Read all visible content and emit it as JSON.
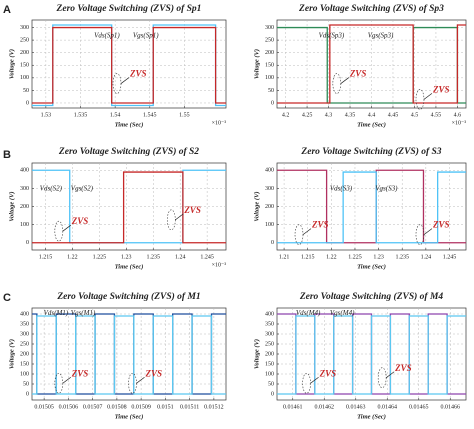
{
  "panels": [
    "A",
    "B",
    "C"
  ],
  "chart_data": [
    {
      "type": "line",
      "title": "Zero Voltage Switching (ZVS) of Sp1",
      "x_label": "Time (Sec)",
      "y_label": "Voltage (V)",
      "x_exponent": "×10⁻³",
      "xlim": [
        1.528,
        1.556
      ],
      "xticks": [
        1.53,
        1.535,
        1.54,
        1.545,
        1.55
      ],
      "ylim": [
        -20,
        330
      ],
      "yticks": [
        0,
        50,
        100,
        150,
        200,
        250,
        300
      ],
      "grid": true,
      "x": [
        1.528,
        1.531,
        1.531,
        1.5395,
        1.5395,
        1.5455,
        1.5455,
        1.5545,
        1.5545,
        1.556
      ],
      "series": [
        {
          "name": "Vds(Sp1)",
          "color": "#4fc3f7",
          "values": [
            -10,
            -10,
            310,
            310,
            -10,
            -10,
            310,
            310,
            -10,
            -10
          ]
        },
        {
          "name": "Vgs(Sp1)",
          "color": "#c62828",
          "values": [
            0,
            0,
            300,
            300,
            0,
            0,
            300,
            300,
            0,
            0
          ]
        }
      ],
      "annotations": [
        "ZVS"
      ]
    },
    {
      "type": "line",
      "title": "Zero Voltage Switching (ZVS) of Sp3",
      "x_label": "Time (Sec)",
      "y_label": "Voltage (V)",
      "x_exponent": "×10⁻³",
      "xlim": [
        4.18,
        4.62
      ],
      "xticks": [
        4.2,
        4.25,
        4.3,
        4.35,
        4.4,
        4.45,
        4.5,
        4.55,
        4.6
      ],
      "ylim": [
        -20,
        330
      ],
      "yticks": [
        0,
        50,
        100,
        150,
        200,
        250,
        300
      ],
      "grid": true,
      "x": [
        4.18,
        4.297,
        4.297,
        4.303,
        4.303,
        4.497,
        4.497,
        4.503,
        4.503,
        4.6,
        4.6,
        4.62
      ],
      "series": [
        {
          "name": "Vds(Sp3)",
          "color": "#2e8b57",
          "values": [
            300,
            300,
            0,
            0,
            0,
            0,
            300,
            300,
            300,
            300,
            0,
            0
          ]
        },
        {
          "name": "Vgs(Sp3)",
          "color": "#c62828",
          "values": [
            0,
            0,
            0,
            0,
            310,
            310,
            0,
            0,
            0,
            0,
            310,
            310
          ]
        }
      ],
      "annotations": [
        "ZVS",
        "ZVS"
      ]
    },
    {
      "type": "line",
      "title": "Zero Voltage Switching (ZVS) of S2",
      "x_label": "Time (Sec)",
      "y_label": "Voltage (V)",
      "x_exponent": "×10⁻³",
      "xlim": [
        1.2125,
        1.2485
      ],
      "xticks": [
        1.215,
        1.22,
        1.225,
        1.23,
        1.235,
        1.24,
        1.245
      ],
      "ylim": [
        -40,
        440
      ],
      "yticks": [
        0,
        100,
        200,
        300,
        400
      ],
      "grid": true,
      "x": [
        1.2125,
        1.2195,
        1.2195,
        1.2295,
        1.2295,
        1.2405,
        1.2405,
        1.2485
      ],
      "series": [
        {
          "name": "Vds(S2)",
          "color": "#4fc3f7",
          "values": [
            400,
            400,
            0,
            0,
            0,
            0,
            400,
            400
          ]
        },
        {
          "name": "Vgs(S2)",
          "color": "#c62828",
          "values": [
            0,
            0,
            0,
            0,
            390,
            390,
            0,
            0
          ]
        }
      ],
      "annotations": [
        "ZVS",
        "ZVS"
      ]
    },
    {
      "type": "line",
      "title": "Zero Voltage Switching (ZVS) of S3",
      "x_label": "Time (Sec)",
      "y_label": "Voltage (V)",
      "xlim": [
        1.2085,
        1.2485
      ],
      "xticks": [
        1.21,
        1.215,
        1.22,
        1.225,
        1.23,
        1.235,
        1.24,
        1.245
      ],
      "ylim": [
        -40,
        440
      ],
      "yticks": [
        0,
        100,
        200,
        300,
        400
      ],
      "grid": true,
      "x": [
        1.2085,
        1.219,
        1.219,
        1.2225,
        1.2225,
        1.2295,
        1.2295,
        1.2395,
        1.2395,
        1.2425,
        1.2425,
        1.2485
      ],
      "series": [
        {
          "name": "Vds(S3)",
          "color": "#b03060",
          "values": [
            400,
            400,
            0,
            0,
            0,
            0,
            400,
            400,
            0,
            0,
            0,
            0
          ]
        },
        {
          "name": "Vgs(S3)",
          "color": "#4fc3f7",
          "values": [
            0,
            0,
            0,
            0,
            390,
            390,
            0,
            0,
            0,
            0,
            390,
            390
          ]
        }
      ],
      "annotations": [
        "ZVS",
        "ZVS"
      ]
    },
    {
      "type": "line",
      "title": "Zero Voltage Switching (ZVS) of M1",
      "x_label": "Time (Sec)",
      "y_label": "Voltage (V)",
      "xlim": [
        0.015045,
        0.015125
      ],
      "xticks": [
        0.01505,
        0.01506,
        0.01507,
        0.01508,
        0.01509,
        0.0151,
        0.01511,
        0.01512
      ],
      "ylim": [
        -30,
        430
      ],
      "yticks": [
        0,
        50,
        100,
        150,
        200,
        250,
        300,
        350,
        400
      ],
      "grid": true,
      "x": [
        0.015045,
        0.015047,
        0.015047,
        0.015055,
        0.015055,
        0.015063,
        0.015063,
        0.015071,
        0.015071,
        0.015079,
        0.015079,
        0.015087,
        0.015087,
        0.015095,
        0.015095,
        0.015103,
        0.015103,
        0.015111,
        0.015111,
        0.015119,
        0.015119,
        0.015125
      ],
      "series": [
        {
          "name": "Vds(M1)",
          "color": "#1f4e9e",
          "values": [
            400,
            400,
            0,
            0,
            400,
            400,
            0,
            0,
            400,
            400,
            0,
            0,
            400,
            400,
            0,
            0,
            400,
            400,
            0,
            0,
            400,
            400
          ]
        },
        {
          "name": "Vgs(M1)",
          "color": "#5bc8f0",
          "values": [
            0,
            0,
            390,
            390,
            0,
            0,
            390,
            390,
            0,
            0,
            390,
            390,
            0,
            0,
            390,
            390,
            0,
            0,
            390,
            390,
            0,
            0
          ]
        }
      ],
      "annotations": [
        "ZVS",
        "ZVS"
      ]
    },
    {
      "type": "line",
      "title": "Zero Voltage Switching (ZVS) of M4",
      "x_label": "Time (Sec)",
      "y_label": "Voltage (V)",
      "xlim": [
        0.014605,
        0.014665
      ],
      "xticks": [
        0.01461,
        0.01462,
        0.01463,
        0.01464,
        0.01465,
        0.01466
      ],
      "ylim": [
        -30,
        430
      ],
      "yticks": [
        0,
        50,
        100,
        150,
        200,
        250,
        300,
        350,
        400
      ],
      "grid": true,
      "x": [
        0.014605,
        0.014611,
        0.014611,
        0.014617,
        0.014617,
        0.014623,
        0.014623,
        0.014629,
        0.014629,
        0.014635,
        0.014635,
        0.014641,
        0.014641,
        0.014647,
        0.014647,
        0.014653,
        0.014653,
        0.014659,
        0.014659,
        0.014665
      ],
      "series": [
        {
          "name": "Vds(M4)",
          "color": "#8e44ad",
          "values": [
            400,
            400,
            0,
            0,
            400,
            400,
            0,
            0,
            400,
            400,
            0,
            0,
            400,
            400,
            0,
            0,
            400,
            400,
            0,
            0
          ]
        },
        {
          "name": "Vgs(M4)",
          "color": "#5bc8f0",
          "values": [
            0,
            0,
            390,
            390,
            0,
            0,
            390,
            390,
            0,
            0,
            390,
            390,
            0,
            0,
            390,
            390,
            0,
            0,
            390,
            390
          ]
        }
      ],
      "annotations": [
        "ZVS",
        "ZVS"
      ]
    }
  ]
}
